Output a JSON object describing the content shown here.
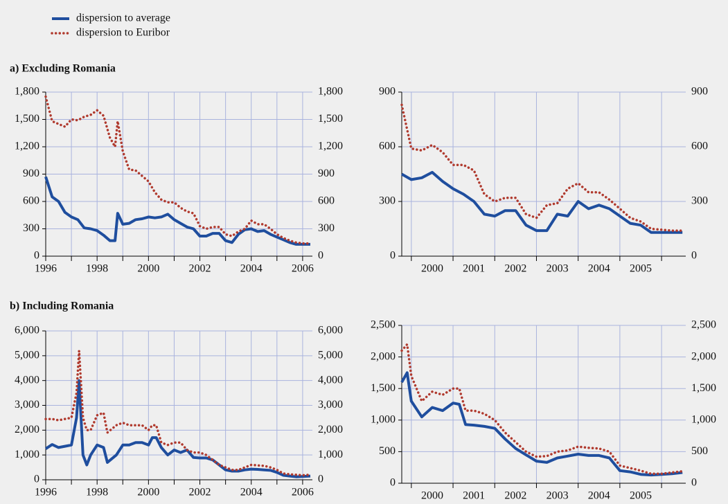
{
  "chart_data": [
    {
      "type": "line",
      "title": "a) Excluding Romania",
      "x": [
        1996,
        1996.25,
        1996.5,
        1996.75,
        1997,
        1997.25,
        1997.5,
        1997.75,
        1998,
        1998.25,
        1998.5,
        1998.7,
        1998.8,
        1999,
        1999.25,
        1999.5,
        1999.75,
        2000,
        2000.25,
        2000.5,
        2000.75,
        2001,
        2001.25,
        2001.5,
        2001.75,
        2002,
        2002.25,
        2002.5,
        2002.75,
        2003,
        2003.25,
        2003.5,
        2003.75,
        2004,
        2004.25,
        2004.5,
        2004.75,
        2005,
        2005.25,
        2005.5,
        2005.75,
        2006,
        2006.3
      ],
      "series": [
        {
          "name": "dispersion to average",
          "color": "#1f4e9e",
          "style": "solid",
          "values": [
            870,
            650,
            600,
            480,
            430,
            400,
            310,
            300,
            280,
            230,
            170,
            170,
            470,
            350,
            360,
            400,
            410,
            430,
            420,
            430,
            460,
            400,
            360,
            320,
            300,
            220,
            220,
            250,
            250,
            170,
            150,
            240,
            290,
            300,
            270,
            280,
            240,
            210,
            180,
            150,
            130,
            130,
            130
          ]
        },
        {
          "name": "dispersion to Euribor",
          "color": "#b03a2e",
          "style": "dotted",
          "values": [
            1750,
            1480,
            1450,
            1420,
            1500,
            1490,
            1530,
            1550,
            1600,
            1540,
            1300,
            1200,
            1480,
            1150,
            950,
            940,
            880,
            820,
            700,
            620,
            590,
            590,
            530,
            490,
            470,
            330,
            300,
            320,
            320,
            240,
            220,
            270,
            300,
            390,
            350,
            350,
            300,
            240,
            200,
            170,
            150,
            140,
            140
          ]
        }
      ],
      "xlim": [
        1996,
        2006.38
      ],
      "xticks": [
        1996,
        1998,
        2000,
        2002,
        2004,
        2006
      ],
      "minor_xticks": [
        1997,
        1999,
        2001,
        2003,
        2005
      ],
      "ylim": [
        0,
        1800
      ],
      "yticks": [
        0,
        300,
        600,
        900,
        {
          "value": 1200,
          "label": "1,200"
        },
        {
          "value": 1500,
          "label": "1,500"
        },
        {
          "value": 1800,
          "label": "1,800"
        }
      ],
      "grid": true
    },
    {
      "type": "line",
      "x": [
        1999.77,
        2000,
        2000.25,
        2000.5,
        2000.75,
        2001,
        2001.25,
        2001.5,
        2001.75,
        2002,
        2002.25,
        2002.5,
        2002.75,
        2003,
        2003.25,
        2003.5,
        2003.75,
        2004,
        2004.25,
        2004.5,
        2004.75,
        2005,
        2005.25,
        2005.5,
        2005.75,
        2006,
        2006.25,
        2006.5
      ],
      "series": [
        {
          "color": "#1f4e9e",
          "style": "solid",
          "values": [
            450,
            420,
            430,
            460,
            410,
            370,
            340,
            300,
            230,
            220,
            250,
            250,
            170,
            140,
            140,
            230,
            220,
            300,
            260,
            280,
            260,
            220,
            180,
            170,
            130,
            130,
            130,
            130
          ]
        },
        {
          "color": "#b03a2e",
          "style": "dotted",
          "values": [
            830,
            590,
            580,
            610,
            570,
            500,
            500,
            470,
            340,
            300,
            320,
            320,
            230,
            210,
            280,
            290,
            370,
            400,
            350,
            350,
            310,
            260,
            210,
            190,
            150,
            145,
            140,
            140
          ]
        }
      ],
      "xlim": [
        1999.77,
        2006.58
      ],
      "xticks": [
        {
          "value": 2000.5,
          "label": "2000"
        },
        {
          "value": 2001.5,
          "label": "2001"
        },
        {
          "value": 2002.5,
          "label": "2002"
        },
        {
          "value": 2003.5,
          "label": "2003"
        },
        {
          "value": 2004.5,
          "label": "2004"
        },
        {
          "value": 2005.5,
          "label": "2005"
        }
      ],
      "xtick_marks": [
        2000,
        2001,
        2002,
        2003,
        2004,
        2005,
        2006
      ],
      "ylim": [
        0,
        900
      ],
      "yticks": [
        0,
        300,
        600,
        900
      ],
      "grid": true
    },
    {
      "type": "line",
      "title": "b) Including Romania",
      "x": [
        1996,
        1996.25,
        1996.5,
        1996.75,
        1997,
        1997.2,
        1997.3,
        1997.45,
        1997.6,
        1997.75,
        1998,
        1998.25,
        1998.4,
        1998.75,
        1999,
        1999.25,
        1999.5,
        1999.75,
        2000,
        2000.15,
        2000.3,
        2000.5,
        2000.75,
        2001,
        2001.25,
        2001.5,
        2001.75,
        2002,
        2002.25,
        2002.5,
        2002.75,
        2003,
        2003.25,
        2003.5,
        2003.75,
        2004,
        2004.25,
        2004.5,
        2004.75,
        2005,
        2005.25,
        2005.5,
        2005.75,
        2006,
        2006.3
      ],
      "series": [
        {
          "color": "#1f4e9e",
          "style": "solid",
          "values": [
            1250,
            1420,
            1300,
            1350,
            1400,
            2500,
            4000,
            1000,
            600,
            1000,
            1400,
            1300,
            700,
            1000,
            1400,
            1400,
            1500,
            1500,
            1400,
            1700,
            1700,
            1300,
            1000,
            1200,
            1100,
            1200,
            900,
            880,
            880,
            800,
            600,
            400,
            350,
            350,
            400,
            430,
            420,
            400,
            380,
            300,
            180,
            150,
            120,
            130,
            150
          ]
        },
        {
          "color": "#b03a2e",
          "style": "dotted",
          "values": [
            2450,
            2450,
            2400,
            2450,
            2500,
            3500,
            5200,
            2500,
            2000,
            2000,
            2600,
            2700,
            1900,
            2200,
            2300,
            2200,
            2200,
            2200,
            2000,
            2200,
            2200,
            1500,
            1400,
            1500,
            1500,
            1200,
            1100,
            1100,
            1000,
            800,
            600,
            500,
            400,
            400,
            500,
            600,
            580,
            560,
            500,
            400,
            250,
            220,
            200,
            180,
            200
          ]
        }
      ],
      "xlim": [
        1996,
        2006.38
      ],
      "xticks": [
        1996,
        1998,
        2000,
        2002,
        2004,
        2006
      ],
      "minor_xticks": [
        1997,
        1999,
        2001,
        2003,
        2005
      ],
      "ylim": [
        0,
        6000
      ],
      "yticks": [
        0,
        {
          "value": 1000,
          "label": "1,000"
        },
        {
          "value": 2000,
          "label": "2,000"
        },
        {
          "value": 3000,
          "label": "3,000"
        },
        {
          "value": 4000,
          "label": "4,000"
        },
        {
          "value": 5000,
          "label": "5,000"
        },
        {
          "value": 6000,
          "label": "6,000"
        }
      ],
      "grid": true
    },
    {
      "type": "line",
      "x": [
        1999.77,
        1999.9,
        2000,
        2000.25,
        2000.5,
        2000.75,
        2001,
        2001.15,
        2001.3,
        2001.5,
        2001.75,
        2002,
        2002.25,
        2002.5,
        2002.75,
        2003,
        2003.25,
        2003.5,
        2003.75,
        2004,
        2004.25,
        2004.5,
        2004.75,
        2005,
        2005.25,
        2005.5,
        2005.75,
        2006,
        2006.25,
        2006.5
      ],
      "series": [
        {
          "color": "#1f4e9e",
          "style": "solid",
          "values": [
            1600,
            1750,
            1300,
            1050,
            1200,
            1150,
            1270,
            1250,
            930,
            920,
            900,
            870,
            700,
            550,
            450,
            350,
            330,
            400,
            430,
            460,
            440,
            440,
            400,
            200,
            180,
            140,
            130,
            140,
            150,
            170
          ]
        },
        {
          "color": "#b03a2e",
          "style": "dotted",
          "values": [
            2100,
            2200,
            1700,
            1300,
            1450,
            1400,
            1500,
            1500,
            1150,
            1150,
            1100,
            1000,
            800,
            650,
            500,
            420,
            430,
            500,
            520,
            580,
            560,
            550,
            500,
            280,
            240,
            200,
            150,
            150,
            170,
            190
          ]
        }
      ],
      "xlim": [
        1999.77,
        2006.58
      ],
      "xticks": [
        {
          "value": 2000.5,
          "label": "2000"
        },
        {
          "value": 2001.5,
          "label": "2001"
        },
        {
          "value": 2002.5,
          "label": "2002"
        },
        {
          "value": 2003.5,
          "label": "2003"
        },
        {
          "value": 2004.5,
          "label": "2004"
        },
        {
          "value": 2005.5,
          "label": "2005"
        }
      ],
      "xtick_marks": [
        2000,
        2001,
        2002,
        2003,
        2004,
        2005,
        2006
      ],
      "ylim": [
        0,
        2500
      ],
      "yticks": [
        0,
        500,
        {
          "value": 1000,
          "label": "1,000"
        },
        {
          "value": 1500,
          "label": "1,500"
        },
        {
          "value": 2000,
          "label": "2,000"
        },
        {
          "value": 2500,
          "label": "2,500"
        }
      ],
      "grid": true
    }
  ]
}
